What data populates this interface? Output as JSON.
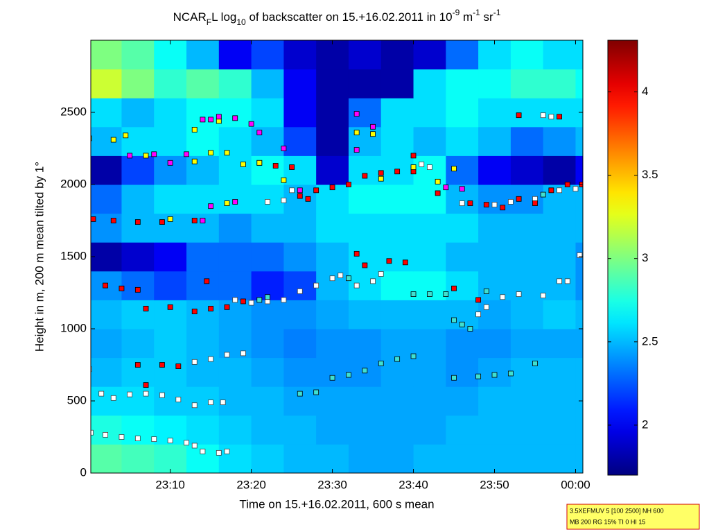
{
  "chart_data": {
    "type": "heatmap",
    "title": [
      {
        "text": "NCAR"
      },
      {
        "text": "F",
        "shift": "sub"
      },
      {
        "text": "L log"
      },
      {
        "text": "10",
        "shift": "sub"
      },
      {
        "text": " of backscatter on 15.+16.02.2011 in 10"
      },
      {
        "text": "-9",
        "shift": "super"
      },
      {
        "text": " m"
      },
      {
        "text": "-1",
        "shift": "super"
      },
      {
        "text": " sr"
      },
      {
        "text": "-1",
        "shift": "super"
      }
    ],
    "xlabel": "Time on 15.+16.02.2011, 600 s mean",
    "ylabel": "Height in m, 200 m mean tilted by 1°",
    "info": [
      "3.5XEFMUV 5 [100 2500] NH 600",
      "MB 200 RG 15% TI 0 HI 15"
    ],
    "xlim": [
      0.2,
      60.9
    ],
    "xticks": [
      {
        "value": 10,
        "label": "23:10"
      },
      {
        "value": 20,
        "label": "23:20"
      },
      {
        "value": 30,
        "label": "23:30"
      },
      {
        "value": 40,
        "label": "23:40"
      },
      {
        "value": 50,
        "label": "23:50"
      },
      {
        "value": 60,
        "label": "00:00"
      }
    ],
    "ylim": [
      0,
      3000
    ],
    "yticks": [
      0,
      500,
      1000,
      1500,
      2000,
      2500
    ],
    "clim": [
      1.7,
      4.31
    ],
    "cticks": [
      2,
      2.5,
      3,
      3.5,
      4
    ],
    "colormap": "jet",
    "xbins": [
      0,
      4,
      8,
      12,
      16,
      20,
      24,
      28,
      32,
      36,
      40,
      44,
      48,
      52,
      56,
      60,
      64
    ],
    "ybins": [
      0,
      200,
      400,
      600,
      800,
      1000,
      1200,
      1400,
      1600,
      1800,
      2000,
      2200,
      2400,
      2600,
      2800,
      3000
    ],
    "z": [
      [
        2.9,
        2.85,
        2.8,
        2.7,
        2.6,
        2.55,
        2.5,
        2.5,
        2.45,
        2.45,
        2.5,
        2.5,
        2.5,
        2.5,
        2.5,
        2.5
      ],
      [
        2.75,
        2.7,
        2.65,
        2.6,
        2.55,
        2.5,
        2.5,
        2.45,
        2.45,
        2.45,
        2.45,
        2.5,
        2.5,
        2.5,
        2.5,
        2.5
      ],
      [
        2.6,
        2.6,
        2.55,
        2.55,
        2.5,
        2.5,
        2.45,
        2.45,
        2.45,
        2.45,
        2.45,
        2.45,
        2.5,
        2.5,
        2.5,
        2.5
      ],
      [
        2.5,
        2.55,
        2.55,
        2.5,
        2.5,
        2.45,
        2.4,
        2.4,
        2.4,
        2.45,
        2.45,
        2.4,
        2.45,
        2.5,
        2.5,
        2.5
      ],
      [
        2.45,
        2.5,
        2.55,
        2.5,
        2.45,
        2.4,
        2.35,
        2.4,
        2.4,
        2.45,
        2.45,
        2.4,
        2.4,
        2.45,
        2.45,
        2.45
      ],
      [
        2.5,
        2.55,
        2.55,
        2.5,
        2.45,
        2.4,
        2.4,
        2.45,
        2.5,
        2.5,
        2.5,
        2.5,
        2.45,
        2.5,
        2.55,
        2.5
      ],
      [
        2.4,
        2.3,
        2.2,
        2.3,
        2.3,
        2.1,
        2.2,
        2.5,
        2.6,
        2.7,
        2.7,
        2.6,
        2.5,
        2.5,
        2.5,
        2.4
      ],
      [
        1.8,
        1.9,
        2.0,
        2.3,
        2.3,
        2.3,
        2.4,
        2.5,
        2.6,
        2.6,
        2.6,
        2.5,
        2.5,
        2.5,
        2.5,
        2.4
      ],
      [
        2.4,
        2.5,
        2.5,
        2.5,
        2.4,
        2.5,
        2.5,
        2.6,
        2.6,
        2.6,
        2.6,
        2.6,
        2.5,
        2.5,
        2.5,
        2.5
      ],
      [
        2.3,
        2.5,
        2.6,
        2.6,
        2.6,
        2.6,
        2.5,
        2.6,
        2.7,
        2.7,
        2.7,
        2.5,
        2.4,
        2.4,
        2.5,
        2.5
      ],
      [
        1.8,
        2.2,
        2.4,
        2.5,
        2.6,
        2.7,
        2.6,
        1.9,
        2.6,
        2.6,
        2.7,
        2.3,
        2.0,
        1.9,
        1.8,
        2.0
      ],
      [
        2.5,
        2.6,
        2.6,
        2.7,
        2.6,
        2.5,
        2.2,
        1.8,
        2.5,
        2.6,
        2.5,
        2.6,
        2.5,
        2.3,
        2.4,
        2.5
      ],
      [
        2.6,
        2.5,
        2.6,
        2.7,
        2.7,
        2.6,
        2.0,
        1.8,
        2.3,
        2.6,
        2.6,
        2.7,
        2.6,
        2.6,
        2.6,
        2.6
      ],
      [
        3.2,
        3.0,
        2.8,
        2.9,
        2.8,
        2.5,
        2.0,
        1.8,
        1.8,
        1.8,
        2.6,
        2.7,
        2.7,
        2.8,
        2.8,
        2.7
      ],
      [
        3.0,
        2.9,
        2.7,
        2.5,
        2.0,
        2.2,
        1.9,
        1.8,
        1.9,
        1.8,
        1.9,
        2.3,
        2.6,
        2.7,
        2.6,
        2.6
      ]
    ],
    "series": [
      {
        "color": "#ffffff",
        "x": [
          0.2,
          2,
          4,
          6,
          8,
          10,
          12,
          13,
          14,
          16,
          17,
          1.5,
          3,
          5,
          7,
          9,
          11,
          13,
          15,
          16.5,
          0,
          13,
          15,
          17,
          19,
          18,
          20,
          22,
          24,
          26,
          28,
          30,
          31,
          33,
          35,
          36,
          22,
          24,
          25,
          40,
          41,
          42,
          46,
          50,
          52,
          55,
          58,
          60,
          60.5,
          48,
          49,
          51,
          53,
          56,
          58,
          59,
          56,
          57
        ],
        "y": [
          280,
          265,
          250,
          240,
          235,
          225,
          210,
          190,
          150,
          140,
          150,
          550,
          520,
          545,
          550,
          540,
          510,
          470,
          490,
          490,
          720,
          770,
          790,
          820,
          830,
          1200,
          1180,
          1190,
          1200,
          1260,
          1300,
          1350,
          1370,
          1300,
          1330,
          1380,
          1880,
          1890,
          1960,
          2110,
          2140,
          2120,
          1870,
          1860,
          1880,
          1900,
          1960,
          1970,
          1510,
          1100,
          1150,
          1220,
          1240,
          1230,
          1330,
          1330,
          2480,
          2470
        ]
      },
      {
        "color": "#ff0000",
        "x": [
          0.5,
          3,
          6,
          9,
          13,
          2,
          4,
          6,
          7,
          10,
          13,
          15,
          17,
          19,
          6,
          9,
          11,
          21,
          23,
          25,
          26,
          28,
          30,
          32,
          34,
          36,
          38,
          40,
          27,
          33,
          34,
          37,
          39,
          40,
          43,
          45,
          47,
          49,
          51,
          53,
          55,
          57,
          59,
          60.8,
          7,
          14.5,
          48,
          53,
          58
        ],
        "y": [
          1760,
          1750,
          1740,
          1740,
          1750,
          1300,
          1280,
          1270,
          1140,
          1150,
          1120,
          1140,
          1150,
          1190,
          750,
          750,
          740,
          2150,
          2130,
          2120,
          1920,
          1960,
          1980,
          2000,
          2060,
          2080,
          2090,
          2090,
          1900,
          1520,
          1440,
          1470,
          1460,
          2200,
          1940,
          1280,
          1870,
          1860,
          1840,
          1900,
          1870,
          1960,
          2000,
          2000,
          610,
          1330,
          1200,
          2480,
          2470
        ]
      },
      {
        "color": "#ffff00",
        "x": [
          0,
          3,
          4.5,
          7,
          13,
          15,
          17,
          19,
          21,
          33,
          35,
          36,
          13,
          16,
          17,
          10,
          24,
          43,
          45,
          40
        ],
        "y": [
          2320,
          2310,
          2340,
          2200,
          2160,
          2220,
          2220,
          2140,
          2150,
          2360,
          2350,
          2040,
          2380,
          2440,
          1870,
          1760,
          2030,
          2020,
          2110,
          2120
        ]
      },
      {
        "color": "#ff00ff",
        "x": [
          5,
          8,
          10,
          12,
          14,
          15,
          16,
          18,
          20,
          21,
          24,
          26,
          33,
          35,
          44,
          46,
          14,
          15,
          18,
          33
        ],
        "y": [
          2200,
          2210,
          2150,
          2210,
          2450,
          2450,
          2470,
          2460,
          2420,
          2360,
          2250,
          1960,
          2240,
          2400,
          1980,
          1970,
          1750,
          1850,
          1880,
          2490
        ]
      },
      {
        "color": "#40e0d0",
        "x": [
          26,
          28,
          30,
          32,
          34,
          36,
          38,
          40,
          45,
          48,
          50,
          52,
          55,
          40,
          42,
          44,
          46,
          47,
          49,
          21,
          22,
          45,
          56,
          32
        ],
        "y": [
          550,
          560,
          660,
          680,
          710,
          760,
          790,
          810,
          660,
          670,
          680,
          690,
          760,
          1240,
          1240,
          1240,
          1030,
          1000,
          1260,
          1200,
          1220,
          1060,
          1930,
          1350
        ]
      }
    ]
  }
}
